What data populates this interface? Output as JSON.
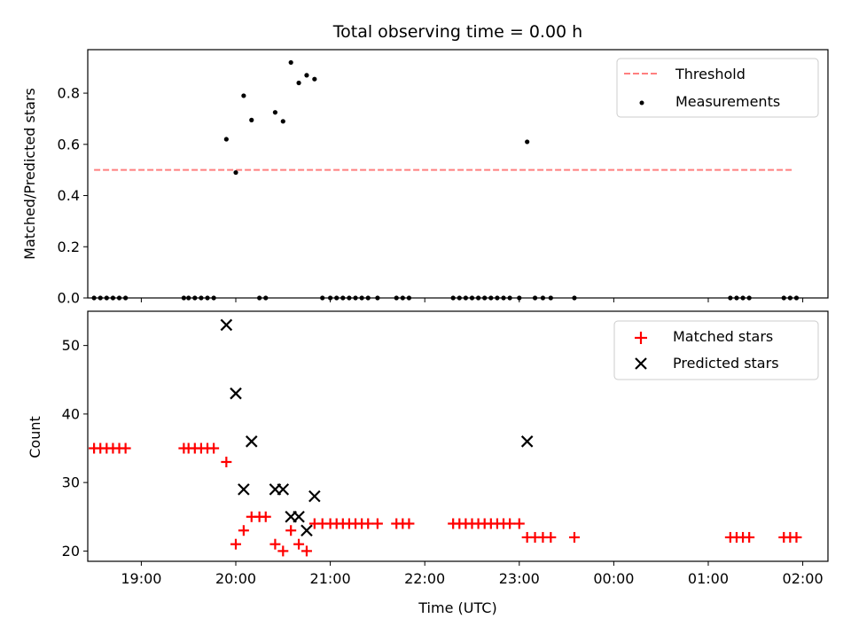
{
  "chart_data": [
    {
      "type": "scatter",
      "title": "Total observing time = 0.00 h",
      "ylabel": "Matched/Predicted stars",
      "xlabel": "",
      "xlim": [
        "18:26",
        "02:16"
      ],
      "ylim": [
        0,
        0.97
      ],
      "y_ticks": [
        "0.0",
        "0.2",
        "0.4",
        "0.6",
        "0.8"
      ],
      "y_tick_values": [
        0,
        0.2,
        0.4,
        0.6,
        0.8
      ],
      "legend_position": "upper right",
      "grid": false,
      "threshold": {
        "name": "Threshold",
        "value": 0.5,
        "x_range": [
          "18:30",
          "01:54"
        ],
        "color": "#ff7f7f",
        "style": "dashed"
      },
      "series": [
        {
          "name": "Measurements",
          "marker": "dot",
          "color": "#000000",
          "points": [
            [
              "18:30",
              0
            ],
            [
              "18:34",
              0
            ],
            [
              "18:38",
              0
            ],
            [
              "18:42",
              0
            ],
            [
              "18:46",
              0
            ],
            [
              "18:50",
              0
            ],
            [
              "19:27",
              0
            ],
            [
              "19:30",
              0
            ],
            [
              "19:34",
              0
            ],
            [
              "19:38",
              0
            ],
            [
              "19:42",
              0
            ],
            [
              "19:46",
              0
            ],
            [
              "19:54",
              0.62
            ],
            [
              "20:00",
              0.49
            ],
            [
              "20:05",
              0.79
            ],
            [
              "20:10",
              0.695
            ],
            [
              "20:15",
              0
            ],
            [
              "20:19",
              0
            ],
            [
              "20:25",
              0.725
            ],
            [
              "20:30",
              0.69
            ],
            [
              "20:35",
              0.92
            ],
            [
              "20:40",
              0.84
            ],
            [
              "20:45",
              0.87
            ],
            [
              "20:50",
              0.855
            ],
            [
              "20:55",
              0
            ],
            [
              "21:00",
              0
            ],
            [
              "21:04",
              0
            ],
            [
              "21:08",
              0
            ],
            [
              "21:12",
              0
            ],
            [
              "21:16",
              0
            ],
            [
              "21:20",
              0
            ],
            [
              "21:24",
              0
            ],
            [
              "21:30",
              0
            ],
            [
              "21:42",
              0
            ],
            [
              "21:46",
              0
            ],
            [
              "21:50",
              0
            ],
            [
              "22:18",
              0
            ],
            [
              "22:22",
              0
            ],
            [
              "22:26",
              0
            ],
            [
              "22:30",
              0
            ],
            [
              "22:34",
              0
            ],
            [
              "22:38",
              0
            ],
            [
              "22:42",
              0
            ],
            [
              "22:46",
              0
            ],
            [
              "22:50",
              0
            ],
            [
              "22:54",
              0
            ],
            [
              "23:00",
              0
            ],
            [
              "23:05",
              0.61
            ],
            [
              "23:10",
              0
            ],
            [
              "23:15",
              0
            ],
            [
              "23:20",
              0
            ],
            [
              "23:35",
              0
            ],
            [
              "01:14",
              0
            ],
            [
              "01:18",
              0
            ],
            [
              "01:22",
              0
            ],
            [
              "01:26",
              0
            ],
            [
              "01:48",
              0
            ],
            [
              "01:52",
              0
            ],
            [
              "01:56",
              0
            ]
          ]
        }
      ]
    },
    {
      "type": "scatter",
      "title": "",
      "ylabel": "Count",
      "xlabel": "Time (UTC)",
      "xlim": [
        "18:26",
        "02:16"
      ],
      "ylim": [
        18.5,
        55
      ],
      "y_ticks": [
        "20",
        "30",
        "40",
        "50"
      ],
      "y_tick_values": [
        20,
        30,
        40,
        50
      ],
      "x_ticks": [
        "19:00",
        "20:00",
        "21:00",
        "22:00",
        "23:00",
        "00:00",
        "01:00",
        "02:00"
      ],
      "legend_position": "upper right",
      "grid": false,
      "series": [
        {
          "name": "Matched stars",
          "marker": "plus",
          "color": "#ff0000",
          "points": [
            [
              "18:30",
              35
            ],
            [
              "18:34",
              35
            ],
            [
              "18:38",
              35
            ],
            [
              "18:42",
              35
            ],
            [
              "18:46",
              35
            ],
            [
              "18:50",
              35
            ],
            [
              "19:27",
              35
            ],
            [
              "19:30",
              35
            ],
            [
              "19:34",
              35
            ],
            [
              "19:38",
              35
            ],
            [
              "19:42",
              35
            ],
            [
              "19:46",
              35
            ],
            [
              "19:54",
              33
            ],
            [
              "20:00",
              21
            ],
            [
              "20:05",
              23
            ],
            [
              "20:10",
              25
            ],
            [
              "20:15",
              25
            ],
            [
              "20:19",
              25
            ],
            [
              "20:25",
              21
            ],
            [
              "20:30",
              20
            ],
            [
              "20:35",
              23
            ],
            [
              "20:40",
              21
            ],
            [
              "20:45",
              20
            ],
            [
              "20:50",
              24
            ],
            [
              "20:55",
              24
            ],
            [
              "21:00",
              24
            ],
            [
              "21:04",
              24
            ],
            [
              "21:08",
              24
            ],
            [
              "21:12",
              24
            ],
            [
              "21:16",
              24
            ],
            [
              "21:20",
              24
            ],
            [
              "21:24",
              24
            ],
            [
              "21:30",
              24
            ],
            [
              "21:42",
              24
            ],
            [
              "21:46",
              24
            ],
            [
              "21:50",
              24
            ],
            [
              "22:18",
              24
            ],
            [
              "22:22",
              24
            ],
            [
              "22:26",
              24
            ],
            [
              "22:30",
              24
            ],
            [
              "22:34",
              24
            ],
            [
              "22:38",
              24
            ],
            [
              "22:42",
              24
            ],
            [
              "22:46",
              24
            ],
            [
              "22:50",
              24
            ],
            [
              "22:54",
              24
            ],
            [
              "23:00",
              24
            ],
            [
              "23:05",
              22
            ],
            [
              "23:10",
              22
            ],
            [
              "23:15",
              22
            ],
            [
              "23:20",
              22
            ],
            [
              "23:35",
              22
            ],
            [
              "01:14",
              22
            ],
            [
              "01:18",
              22
            ],
            [
              "01:22",
              22
            ],
            [
              "01:26",
              22
            ],
            [
              "01:48",
              22
            ],
            [
              "01:52",
              22
            ],
            [
              "01:56",
              22
            ]
          ]
        },
        {
          "name": "Predicted stars",
          "marker": "x",
          "color": "#000000",
          "points": [
            [
              "19:54",
              53
            ],
            [
              "20:00",
              43
            ],
            [
              "20:05",
              29
            ],
            [
              "20:10",
              36
            ],
            [
              "20:25",
              29
            ],
            [
              "20:30",
              29
            ],
            [
              "20:35",
              25
            ],
            [
              "20:40",
              25
            ],
            [
              "20:45",
              23
            ],
            [
              "20:50",
              28
            ],
            [
              "23:05",
              36
            ]
          ]
        }
      ]
    }
  ]
}
